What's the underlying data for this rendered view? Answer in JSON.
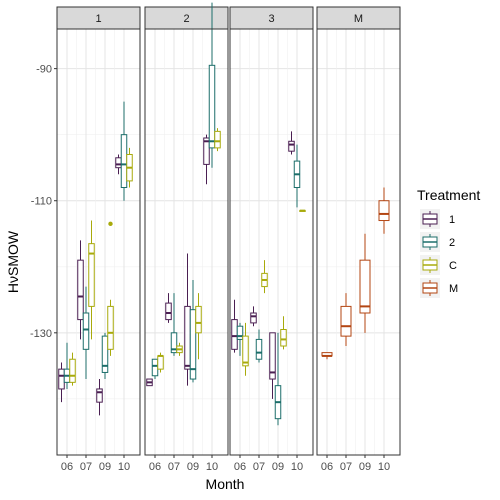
{
  "chart_data": {
    "type": "boxplot",
    "facet_by": "Group",
    "facets": [
      "1",
      "2",
      "3",
      "M"
    ],
    "xlabel": "Month",
    "ylabel": "HνSMOW",
    "ylim": [
      -148.5,
      -84
    ],
    "yticks": [
      -90,
      -110,
      -130
    ],
    "x_categories": {
      "1": [
        "06",
        "07",
        "09",
        "10"
      ],
      "2": [
        "06",
        "07",
        "09",
        "10"
      ],
      "3": [
        "06",
        "07",
        "09",
        "10"
      ],
      "M": [
        "06",
        "07",
        "09",
        "10"
      ]
    },
    "legend": {
      "title": "Treatment",
      "entries": [
        "1",
        "2",
        "C",
        "M"
      ],
      "position": "right"
    },
    "series_colors": {
      "1": "#4a1f52",
      "2": "#1c6e6a",
      "C": "#a8aa0b",
      "M": "#b34512"
    },
    "grid": true,
    "boxes": [
      {
        "facet": "1",
        "month": "06",
        "treatment": "1",
        "min": -140.5,
        "q1": -138.5,
        "median": -136.5,
        "q3": -135.5,
        "max": -134.5
      },
      {
        "facet": "1",
        "month": "06",
        "treatment": "2",
        "min": -138.5,
        "q1": -137.5,
        "median": -136.5,
        "q3": -135.5,
        "max": -131.5
      },
      {
        "facet": "1",
        "month": "06",
        "treatment": "C",
        "min": -138,
        "q1": -137.5,
        "median": -136.5,
        "q3": -134,
        "max": -133
      },
      {
        "facet": "1",
        "month": "07",
        "treatment": "1",
        "min": -131,
        "q1": -128,
        "median": -124.5,
        "q3": -119,
        "max": -116
      },
      {
        "facet": "1",
        "month": "07",
        "treatment": "2",
        "min": -137,
        "q1": -132.5,
        "median": -129.5,
        "q3": -127,
        "max": -123
      },
      {
        "facet": "1",
        "month": "07",
        "treatment": "C",
        "min": -131,
        "q1": -126,
        "median": -118,
        "q3": -116.5,
        "max": -113
      },
      {
        "facet": "1",
        "month": "09",
        "treatment": "1",
        "min": -142.5,
        "q1": -140.5,
        "median": -139,
        "q3": -138.5,
        "max": -137
      },
      {
        "facet": "1",
        "month": "09",
        "treatment": "2",
        "min": -137,
        "q1": -136,
        "median": -135,
        "q3": -130.5,
        "max": -130
      },
      {
        "facet": "1",
        "month": "09",
        "treatment": "C",
        "min": -133.5,
        "q1": -132.5,
        "median": -130,
        "q3": -126,
        "max": -125,
        "outliers": [
          -113.5
        ]
      },
      {
        "facet": "1",
        "month": "10",
        "treatment": "1",
        "min": -106,
        "q1": -105,
        "median": -104.5,
        "q3": -103.5,
        "max": -103
      },
      {
        "facet": "1",
        "month": "10",
        "treatment": "2",
        "min": -110,
        "q1": -108,
        "median": -104.5,
        "q3": -100,
        "max": -95
      },
      {
        "facet": "1",
        "month": "10",
        "treatment": "C",
        "min": -108,
        "q1": -107,
        "median": -105,
        "q3": -103,
        "max": -102
      },
      {
        "facet": "2",
        "month": "06",
        "treatment": "1",
        "min": -138,
        "q1": -138,
        "median": -137.5,
        "q3": -137,
        "max": -137
      },
      {
        "facet": "2",
        "month": "06",
        "treatment": "2",
        "min": -137,
        "q1": -136.5,
        "median": -135,
        "q3": -134,
        "max": -134
      },
      {
        "facet": "2",
        "month": "06",
        "treatment": "C",
        "min": -136,
        "q1": -135.5,
        "median": -133.5,
        "q3": -133.5,
        "max": -133
      },
      {
        "facet": "2",
        "month": "07",
        "treatment": "1",
        "min": -128.5,
        "q1": -128,
        "median": -127,
        "q3": -125.5,
        "max": -124
      },
      {
        "facet": "2",
        "month": "07",
        "treatment": "2",
        "min": -133.5,
        "q1": -133,
        "median": -132.5,
        "q3": -130,
        "max": -124
      },
      {
        "facet": "2",
        "month": "07",
        "treatment": "C",
        "min": -133.5,
        "q1": -133,
        "median": -132.5,
        "q3": -132,
        "max": -131.5
      },
      {
        "facet": "2",
        "month": "09",
        "treatment": "1",
        "min": -138,
        "q1": -135.5,
        "median": -135,
        "q3": -126,
        "max": -118
      },
      {
        "facet": "2",
        "month": "09",
        "treatment": "2",
        "min": -137.5,
        "q1": -137,
        "median": -135.5,
        "q3": -126.5,
        "max": -122
      },
      {
        "facet": "2",
        "month": "09",
        "treatment": "C",
        "min": -134,
        "q1": -130,
        "median": -128.5,
        "q3": -126,
        "max": -124
      },
      {
        "facet": "2",
        "month": "10",
        "treatment": "1",
        "min": -107.5,
        "q1": -104.5,
        "median": -101,
        "q3": -100.5,
        "max": -100
      },
      {
        "facet": "2",
        "month": "10",
        "treatment": "2",
        "min": -105,
        "q1": -102,
        "median": -101,
        "q3": -89.5,
        "max": -80
      },
      {
        "facet": "2",
        "month": "10",
        "treatment": "C",
        "min": -102.5,
        "q1": -102,
        "median": -101,
        "q3": -99.5,
        "max": -99
      },
      {
        "facet": "3",
        "month": "06",
        "treatment": "1",
        "min": -133,
        "q1": -132.5,
        "median": -130.5,
        "q3": -128,
        "max": -125
      },
      {
        "facet": "3",
        "month": "06",
        "treatment": "2",
        "min": -133.5,
        "q1": -131,
        "median": -130.5,
        "q3": -129,
        "max": -128.5
      },
      {
        "facet": "3",
        "month": "06",
        "treatment": "C",
        "min": -136.5,
        "q1": -135,
        "median": -134.5,
        "q3": -130.5,
        "max": -128.5
      },
      {
        "facet": "3",
        "month": "07",
        "treatment": "1",
        "min": -129,
        "q1": -128.5,
        "median": -127.5,
        "q3": -127,
        "max": -126
      },
      {
        "facet": "3",
        "month": "07",
        "treatment": "2",
        "min": -134.5,
        "q1": -134,
        "median": -133,
        "q3": -131,
        "max": -129.5
      },
      {
        "facet": "3",
        "month": "07",
        "treatment": "C",
        "min": -124,
        "q1": -123,
        "median": -122,
        "q3": -121,
        "max": -119
      },
      {
        "facet": "3",
        "month": "09",
        "treatment": "1",
        "min": -140,
        "q1": -137,
        "median": -136,
        "q3": -130,
        "max": -130
      },
      {
        "facet": "3",
        "month": "09",
        "treatment": "2",
        "min": -144,
        "q1": -143,
        "median": -140.5,
        "q3": -138,
        "max": -130
      },
      {
        "facet": "3",
        "month": "09",
        "treatment": "C",
        "min": -132.5,
        "q1": -132,
        "median": -131,
        "q3": -129.5,
        "max": -127.5
      },
      {
        "facet": "3",
        "month": "10",
        "treatment": "1",
        "min": -103,
        "q1": -102.5,
        "median": -101.5,
        "q3": -101,
        "max": -99.5
      },
      {
        "facet": "3",
        "month": "10",
        "treatment": "2",
        "min": -111,
        "q1": -108,
        "median": -106,
        "q3": -104,
        "max": -101.5
      },
      {
        "facet": "3",
        "month": "10",
        "treatment": "C",
        "min": -111.5,
        "q1": -111.5,
        "median": -111.5,
        "q3": -111.5,
        "max": -111.5
      },
      {
        "facet": "M",
        "month": "06",
        "treatment": "M",
        "min": -134,
        "q1": -133.5,
        "median": -133.5,
        "q3": -133,
        "max": -133
      },
      {
        "facet": "M",
        "month": "07",
        "treatment": "M",
        "min": -132,
        "q1": -130.5,
        "median": -129,
        "q3": -126,
        "max": -124
      },
      {
        "facet": "M",
        "month": "09",
        "treatment": "M",
        "min": -130,
        "q1": -127,
        "median": -126,
        "q3": -119,
        "max": -115
      },
      {
        "facet": "M",
        "month": "10",
        "treatment": "M",
        "min": -115,
        "q1": -113,
        "median": -112,
        "q3": -110,
        "max": -108
      }
    ]
  }
}
